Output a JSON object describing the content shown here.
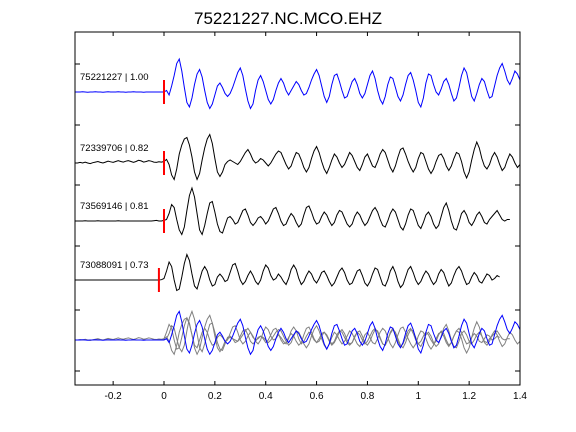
{
  "chart_data": {
    "type": "line",
    "title": "75221227.NC.MCO.EHZ",
    "xlabel": "",
    "ylabel": "",
    "xlim": [
      -0.35,
      1.4
    ],
    "x_ticks": [
      -0.2,
      0,
      0.2,
      0.4,
      0.6,
      0.8,
      1,
      1.2,
      1.4
    ],
    "x_tick_labels": [
      "-0.2",
      "0",
      "0.2",
      "0.4",
      "0.6",
      "0.8",
      "1",
      "1.2",
      "1.4"
    ],
    "grid": false,
    "pick_color": "#ff0000",
    "series": [
      {
        "name": "75221227 | 1.00",
        "color": "#0000ff",
        "pick_time": 0.0,
        "x0": -0.35,
        "dt": 0.01,
        "values": [
          0,
          0,
          0,
          0.01,
          0,
          -0.01,
          0,
          0,
          0.01,
          0,
          0,
          -0.01,
          0,
          0.01,
          0,
          0,
          0,
          0.01,
          0,
          0,
          -0.01,
          0,
          0,
          0.01,
          0,
          0,
          0,
          -0.01,
          0,
          0,
          0,
          0,
          0,
          0,
          0,
          0,
          0.05,
          -0.1,
          0.2,
          0.55,
          0.95,
          1.1,
          0.7,
          0.15,
          -0.35,
          -0.5,
          -0.2,
          0.25,
          0.6,
          0.75,
          0.5,
          0.05,
          -0.35,
          -0.55,
          -0.4,
          -0.1,
          0.2,
          0.3,
          0.15,
          -0.05,
          -0.15,
          -0.05,
          0.15,
          0.4,
          0.65,
          0.8,
          0.55,
          0.1,
          -0.3,
          -0.55,
          -0.4,
          0.05,
          0.4,
          0.55,
          0.35,
          0.05,
          -0.25,
          -0.4,
          -0.25,
          0.05,
          0.3,
          0.45,
          0.3,
          0.05,
          -0.1,
          0.05,
          0.2,
          0.35,
          0.25,
          0.05,
          -0.1,
          -0.05,
          0.15,
          0.4,
          0.6,
          0.75,
          0.55,
          0.2,
          -0.15,
          -0.35,
          -0.15,
          0.25,
          0.55,
          0.6,
          0.35,
          0.05,
          -0.2,
          -0.15,
          0.1,
          0.35,
          0.45,
          0.25,
          -0.05,
          -0.2,
          -0.05,
          0.25,
          0.55,
          0.7,
          0.45,
          0.05,
          -0.25,
          -0.4,
          -0.15,
          0.25,
          0.5,
          0.45,
          0.15,
          -0.15,
          -0.3,
          -0.1,
          0.25,
          0.55,
          0.65,
          0.4,
          0.05,
          -0.35,
          -0.5,
          -0.2,
          0.3,
          0.6,
          0.55,
          0.25,
          0,
          -0.1,
          0.1,
          0.35,
          0.45,
          0.25,
          -0.05,
          -0.3,
          -0.2,
          0.15,
          0.55,
          0.8,
          0.65,
          0.25,
          -0.15,
          -0.3,
          -0.05,
          0.25,
          0.45,
          0.35,
          0.05,
          -0.2,
          -0.15,
          0.2,
          0.55,
          0.8,
          0.95,
          0.7,
          0.4,
          0.25,
          0.45,
          0.7,
          0.6,
          0.4,
          0.6,
          0.75,
          0.6,
          0.3,
          0.1
        ]
      },
      {
        "name": "72339706 | 0.82",
        "color": "#000000",
        "pick_time": 0.0,
        "x0": -0.35,
        "dt": 0.01,
        "values": [
          0,
          0,
          0.02,
          0,
          0.03,
          0,
          -0.02,
          0.01,
          0.03,
          0.05,
          0.02,
          0,
          0.03,
          0.06,
          0.04,
          0.02,
          0.05,
          0.08,
          0.05,
          0.03,
          0.06,
          0.08,
          0.05,
          0.02,
          0.05,
          0.09,
          0.07,
          0.03,
          0.05,
          0.08,
          0.06,
          0.03,
          0.02,
          0.04,
          0.03,
          0.05,
          0.12,
          -0.05,
          -0.4,
          -0.55,
          -0.2,
          0.3,
          0.6,
          0.8,
          0.85,
          0.6,
          0.2,
          -0.3,
          -0.55,
          -0.35,
          0.1,
          0.5,
          0.8,
          0.95,
          0.65,
          0.15,
          -0.3,
          -0.45,
          -0.3,
          -0.05,
          0.05,
          0.1,
          0.05,
          0,
          -0.05,
          0.05,
          0.2,
          0.35,
          0.45,
          0.3,
          0.1,
          0,
          0.05,
          0.15,
          0.1,
          0,
          -0.1,
          0,
          0.15,
          0.3,
          0.4,
          0.35,
          0.15,
          -0.05,
          -0.2,
          -0.1,
          0.15,
          0.35,
          0.3,
          0.1,
          -0.15,
          -0.3,
          -0.15,
          0.15,
          0.4,
          0.55,
          0.35,
          0.05,
          -0.2,
          -0.35,
          -0.15,
          0.1,
          0.3,
          0.2,
          0,
          -0.15,
          -0.05,
          0.15,
          0.35,
          0.25,
          0.05,
          -0.15,
          -0.25,
          -0.05,
          0.2,
          0.3,
          0.1,
          -0.1,
          -0.15,
          0.05,
          0.3,
          0.45,
          0.35,
          0.1,
          -0.15,
          -0.3,
          -0.1,
          0.2,
          0.45,
          0.5,
          0.3,
          0.05,
          -0.15,
          -0.3,
          -0.15,
          0.15,
          0.35,
          0.3,
          0.05,
          -0.2,
          -0.35,
          -0.2,
          0.05,
          0.25,
          0.3,
          0.15,
          -0.1,
          -0.25,
          -0.1,
          0.15,
          0.35,
          0.3,
          0.05,
          -0.3,
          -0.5,
          -0.3,
          0.1,
          0.45,
          0.7,
          0.5,
          0.15,
          -0.1,
          -0.2,
          -0.05,
          0.2,
          0.35,
          0.2,
          -0.05,
          -0.25,
          -0.15,
          0.1,
          0.3,
          0.2,
          0,
          -0.15,
          -0.05,
          0.1,
          0.2,
          0.1,
          0.15
        ]
      },
      {
        "name": "73569146 | 0.81",
        "color": "#000000",
        "pick_time": 0.0,
        "x0": -0.35,
        "dt": 0.01,
        "values": [
          0,
          0,
          0,
          0,
          0.01,
          0,
          0,
          0,
          0,
          0.01,
          0,
          0,
          0,
          0,
          0,
          0,
          0,
          0.01,
          0,
          0,
          0,
          0,
          0,
          0,
          0,
          0,
          0,
          0,
          0,
          0,
          0,
          0.01,
          0.02,
          0,
          0,
          0.02,
          0.05,
          0.25,
          0.55,
          0.45,
          0.05,
          -0.3,
          -0.45,
          -0.2,
          0.35,
          0.85,
          1.1,
          0.8,
          0.25,
          -0.3,
          -0.45,
          -0.15,
          0.25,
          0.6,
          0.65,
          0.3,
          -0.1,
          -0.35,
          -0.4,
          -0.15,
          0.1,
          0.15,
          0.05,
          -0.1,
          -0.05,
          0.15,
          0.35,
          0.4,
          0.2,
          -0.05,
          -0.15,
          -0.05,
          0.1,
          0.15,
          0.05,
          -0.1,
          0,
          0.2,
          0.4,
          0.45,
          0.25,
          0,
          -0.15,
          -0.1,
          0.1,
          0.25,
          0.15,
          -0.05,
          -0.2,
          -0.1,
          0.2,
          0.45,
          0.5,
          0.3,
          0.05,
          -0.1,
          -0.05,
          0.15,
          0.3,
          0.2,
          0,
          -0.15,
          -0.05,
          0.2,
          0.35,
          0.3,
          0.1,
          -0.1,
          -0.2,
          -0.1,
          0.15,
          0.3,
          0.2,
          0,
          -0.15,
          -0.05,
          0.15,
          0.35,
          0.45,
          0.3,
          0.05,
          -0.15,
          -0.2,
          0,
          0.25,
          0.4,
          0.3,
          0.05,
          -0.2,
          -0.3,
          -0.1,
          0.2,
          0.4,
          0.35,
          0.1,
          -0.15,
          -0.25,
          -0.05,
          0.2,
          0.3,
          0.15,
          -0.1,
          -0.25,
          -0.15,
          0.15,
          0.45,
          0.6,
          0.35,
          0,
          -0.25,
          -0.3,
          -0.05,
          0.25,
          0.35,
          0.2,
          -0.05,
          -0.15,
          0,
          0.2,
          0.3,
          0.15,
          -0.05,
          -0.1,
          0.05,
          0.15,
          0.25,
          0.35,
          0.2,
          0.05,
          0,
          0.05,
          0.05
        ]
      },
      {
        "name": "73088091 | 0.73",
        "color": "#000000",
        "pick_time": -0.02,
        "x0": -0.35,
        "dt": 0.01,
        "values": [
          0,
          0,
          0,
          0,
          0,
          0,
          0,
          0,
          0,
          0,
          0,
          0,
          0,
          0,
          0,
          0,
          0,
          0,
          0,
          0,
          0,
          0,
          0,
          0,
          0,
          0,
          0,
          0,
          0,
          0,
          0,
          0,
          0,
          0,
          0.01,
          0.05,
          0.3,
          0.6,
          0.45,
          0,
          -0.35,
          -0.3,
          0.1,
          0.55,
          0.85,
          0.65,
          0.2,
          -0.2,
          -0.3,
          0,
          0.3,
          0.45,
          0.3,
          0,
          -0.2,
          -0.15,
          0.1,
          0.2,
          0.1,
          -0.05,
          0,
          0.25,
          0.5,
          0.55,
          0.3,
          0,
          -0.15,
          -0.05,
          0.15,
          0.3,
          0.15,
          -0.05,
          -0.15,
          0,
          0.3,
          0.5,
          0.4,
          0.15,
          0,
          0.05,
          0.2,
          0.1,
          -0.05,
          -0.15,
          0.05,
          0.35,
          0.5,
          0.35,
          0.05,
          -0.15,
          -0.05,
          0.15,
          0.3,
          0.2,
          0,
          -0.1,
          0.05,
          0.25,
          0.3,
          0.15,
          -0.05,
          -0.2,
          -0.1,
          0.1,
          0.3,
          0.4,
          0.25,
          0,
          -0.15,
          -0.1,
          0.1,
          0.3,
          0.35,
          0.15,
          -0.1,
          -0.2,
          -0.05,
          0.2,
          0.4,
          0.35,
          0.1,
          -0.15,
          -0.2,
          0,
          0.3,
          0.45,
          0.25,
          -0.05,
          -0.25,
          -0.15,
          0.1,
          0.35,
          0.45,
          0.25,
          0,
          -0.15,
          -0.05,
          0.15,
          0.3,
          0.2,
          0,
          -0.15,
          -0.05,
          0.2,
          0.35,
          0.25,
          0,
          -0.2,
          -0.1,
          0.15,
          0.35,
          0.45,
          0.3,
          0.05,
          -0.15,
          -0.1,
          0.1,
          0.25,
          0.15,
          -0.05,
          -0.1,
          0.05,
          0.2,
          0.15,
          0,
          0.05,
          0.15,
          0.1
        ]
      }
    ]
  }
}
